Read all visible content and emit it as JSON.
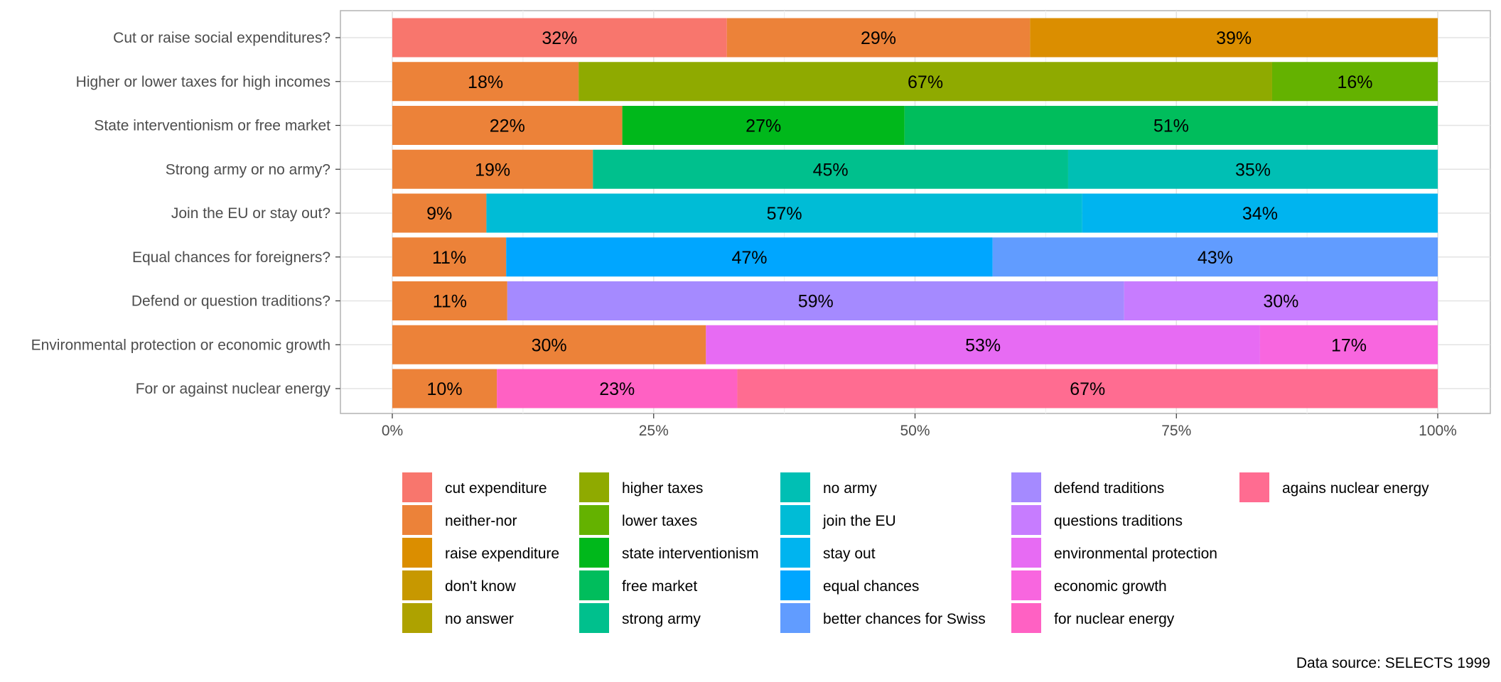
{
  "chart_data": {
    "type": "bar",
    "orientation": "horizontal",
    "stacked": "percent",
    "grid": true,
    "legend_position": "bottom",
    "categories": [
      "Cut or raise social expenditures?",
      "Higher or lower taxes for high incomes",
      "State interventionism or free market",
      "Strong army or no army?",
      "Join the EU or stay out?",
      "Equal chances for foreigners?",
      "Defend or question traditions?",
      "Environmental protection or economic growth",
      "For or against nuclear energy"
    ],
    "xlim": [
      0,
      100
    ],
    "x_ticks": [
      "0%",
      "25%",
      "50%",
      "75%",
      "100%"
    ],
    "x_tick_values": [
      0,
      25,
      50,
      75,
      100
    ],
    "segments": [
      [
        {
          "response": "cut expenditure",
          "value": 32,
          "label": "32%"
        },
        {
          "response": "neither-nor",
          "value": 29,
          "label": "29%"
        },
        {
          "response": "raise expenditure",
          "value": 39,
          "label": "39%"
        }
      ],
      [
        {
          "response": "neither-nor",
          "value": 18,
          "label": "18%"
        },
        {
          "response": "higher taxes",
          "value": 67,
          "label": "67%"
        },
        {
          "response": "lower taxes",
          "value": 16,
          "label": "16%"
        }
      ],
      [
        {
          "response": "neither-nor",
          "value": 22,
          "label": "22%"
        },
        {
          "response": "state interventionism",
          "value": 27,
          "label": "27%"
        },
        {
          "response": "free market",
          "value": 51,
          "label": "51%"
        }
      ],
      [
        {
          "response": "neither-nor",
          "value": 19,
          "label": "19%"
        },
        {
          "response": "strong army",
          "value": 45,
          "label": "45%"
        },
        {
          "response": "no army",
          "value": 35,
          "label": "35%"
        }
      ],
      [
        {
          "response": "neither-nor",
          "value": 9,
          "label": "9%"
        },
        {
          "response": "join the EU",
          "value": 57,
          "label": "57%"
        },
        {
          "response": "stay out",
          "value": 34,
          "label": "34%"
        }
      ],
      [
        {
          "response": "neither-nor",
          "value": 11,
          "label": "11%"
        },
        {
          "response": "equal chances",
          "value": 47,
          "label": "47%"
        },
        {
          "response": "better chances for Swiss",
          "value": 43,
          "label": "43%"
        }
      ],
      [
        {
          "response": "neither-nor",
          "value": 11,
          "label": "11%"
        },
        {
          "response": "defend traditions",
          "value": 59,
          "label": "59%"
        },
        {
          "response": "questions traditions",
          "value": 30,
          "label": "30%"
        }
      ],
      [
        {
          "response": "neither-nor",
          "value": 30,
          "label": "30%"
        },
        {
          "response": "environmental protection",
          "value": 53,
          "label": "53%"
        },
        {
          "response": "economic growth",
          "value": 17,
          "label": "17%"
        }
      ],
      [
        {
          "response": "neither-nor",
          "value": 10,
          "label": "10%"
        },
        {
          "response": "for nuclear energy",
          "value": 23,
          "label": "23%"
        },
        {
          "response": "agains nuclear energy",
          "value": 67,
          "label": "67%"
        }
      ]
    ],
    "legend": [
      {
        "label": "cut expenditure",
        "color": "#F8766D"
      },
      {
        "label": "neither-nor",
        "color": "#EC8239"
      },
      {
        "label": "raise expenditure",
        "color": "#DB8E00"
      },
      {
        "label": "don't know",
        "color": "#C79800"
      },
      {
        "label": "no answer",
        "color": "#AEA200"
      },
      {
        "label": "higher taxes",
        "color": "#8FAA00"
      },
      {
        "label": "lower taxes",
        "color": "#64B200"
      },
      {
        "label": "state interventionism",
        "color": "#00B81B"
      },
      {
        "label": "free market",
        "color": "#00BD5C"
      },
      {
        "label": "strong army",
        "color": "#00C08D"
      },
      {
        "label": "no army",
        "color": "#00BFB4"
      },
      {
        "label": "join the EU",
        "color": "#00BCD6"
      },
      {
        "label": "stay out",
        "color": "#00B4EF"
      },
      {
        "label": "equal chances",
        "color": "#00A6FF"
      },
      {
        "label": "better chances for Swiss",
        "color": "#619CFF"
      },
      {
        "label": "defend traditions",
        "color": "#A58AFF"
      },
      {
        "label": "questions traditions",
        "color": "#C77CFF"
      },
      {
        "label": "environmental protection",
        "color": "#E76BF3"
      },
      {
        "label": "economic growth",
        "color": "#F866DF"
      },
      {
        "label": "for nuclear energy",
        "color": "#FF61C3"
      },
      {
        "label": "agains nuclear energy",
        "color": "#FF6C91"
      }
    ],
    "caption": "Data source: SELECTS 1999"
  }
}
